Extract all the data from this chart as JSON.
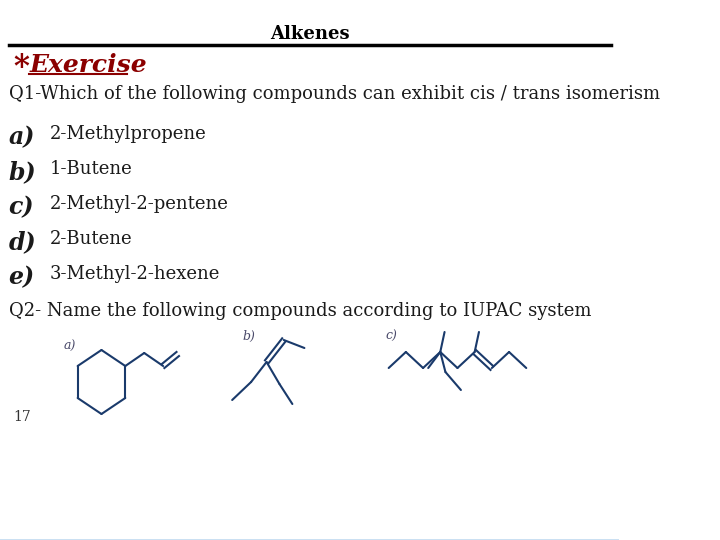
{
  "title": "Alkenes",
  "title_color": "#000000",
  "title_fontsize": 13,
  "exercise_color": "#8b0000",
  "exercise_fontsize": 18,
  "line_color": "#000000",
  "q1_text": "Q1-Which of the following compounds can exhibit cis / trans isomerism",
  "q1_fontsize": 13,
  "options": [
    {
      "label": "a)",
      "text": "2-Methylpropene"
    },
    {
      "label": "b)",
      "text": "1-Butene"
    },
    {
      "label": "c)",
      "text": "2-Methyl-2-pentene"
    },
    {
      "label": "d)",
      "text": "2-Butene"
    },
    {
      "label": "e)",
      "text": "3-Methyl-2-hexene"
    }
  ],
  "label_fontsize": 17,
  "text_fontsize": 13,
  "q2_text": "Q2- Name the following compounds according to IUPAC system",
  "q2_fontsize": 13,
  "footer_number": "17",
  "structure_color": "#1a3a6b",
  "label_color": "#4a4a6a"
}
